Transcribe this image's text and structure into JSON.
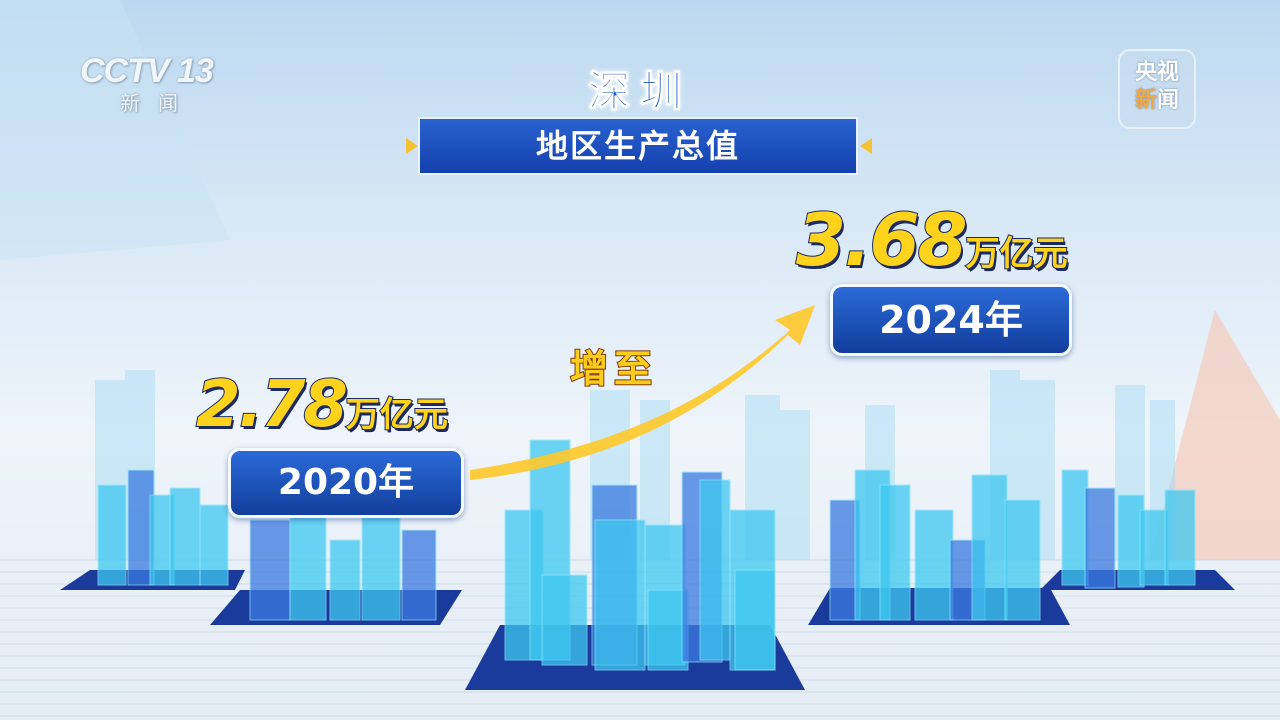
{
  "channel_logo": {
    "text": "CCTV 13",
    "subtitle": "新闻"
  },
  "corner_badge": {
    "line1_a": "央",
    "line1_b": "视",
    "line2_a": "新",
    "line2_b": "闻"
  },
  "title": {
    "city": "深圳",
    "metric": "地区生产总值"
  },
  "start": {
    "value": "2.78",
    "unit": "万亿元",
    "year": "2020年"
  },
  "growth_label": "增至",
  "end": {
    "value": "3.68",
    "unit": "万亿元",
    "year": "2024年"
  },
  "colors": {
    "value_yellow": "#ffd21c",
    "banner_blue": "#1a4fc0",
    "building_cyan": "#3ec8f0",
    "platform_navy": "#1a3a9c"
  }
}
